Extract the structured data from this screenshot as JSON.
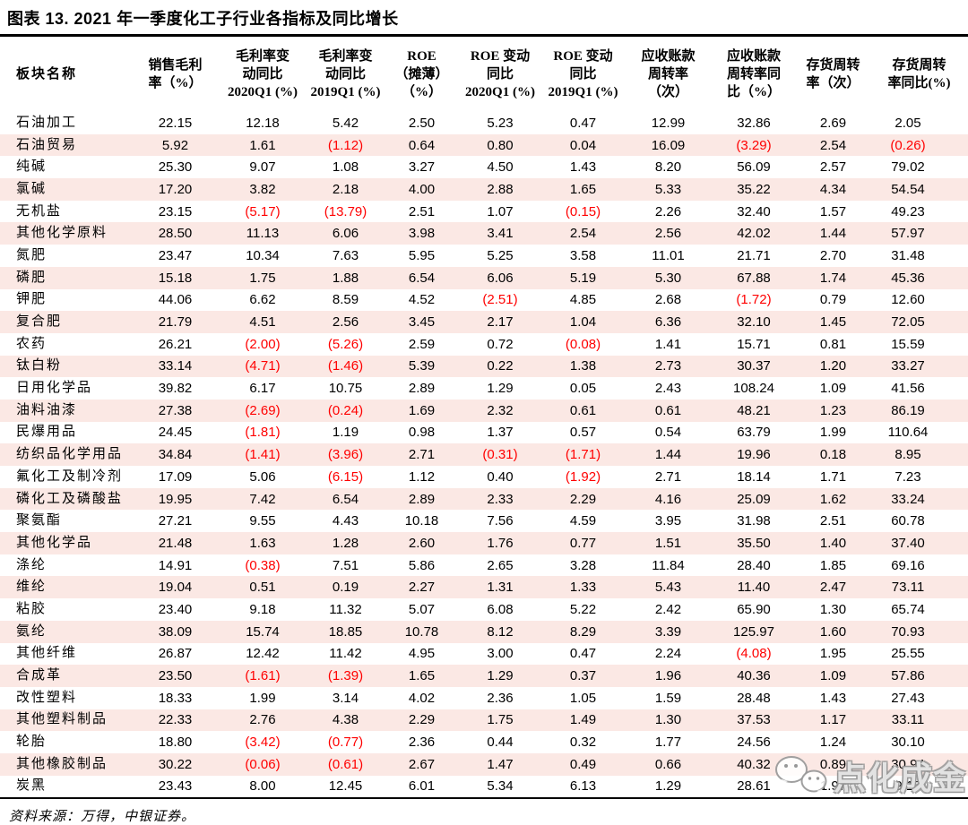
{
  "title": "图表 13. 2021 年一季度化工子行业各指标及同比增长",
  "source_note": "资料来源：万得，中银证券。",
  "watermark": {
    "text": "点化成金",
    "icon": "wechat-chat-bubbles-icon"
  },
  "colors": {
    "stripe_pink": "#fbe8e4",
    "negative_red": "#ff0000",
    "text_black": "#000000",
    "watermark_gray": "#969696"
  },
  "negative_format": "parentheses shown in red",
  "chart_data": {
    "type": "table",
    "headers": [
      "板块名称",
      "销售毛利\n率（%）",
      "毛利率变\n动同比\n2020Q1 (%)",
      "毛利率变\n动同比\n2019Q1 (%)",
      "ROE\n（摊薄）\n（%）",
      "ROE 变动\n同比\n2020Q1 (%)",
      "ROE 变动\n同比\n2019Q1 (%)",
      "应收账款\n周转率\n（次）",
      "应收账款\n周转率同\n比（%）",
      "存货周转\n率（次）",
      "存货周转\n率同比(%)"
    ],
    "rows": [
      {
        "name": "石油加工",
        "values": [
          "22.15",
          "12.18",
          "5.42",
          "2.50",
          "5.23",
          "0.47",
          "12.99",
          "32.86",
          "2.69",
          "2.05"
        ]
      },
      {
        "name": "石油贸易",
        "values": [
          "5.92",
          "1.61",
          "(1.12)",
          "0.64",
          "0.80",
          "0.04",
          "16.09",
          "(3.29)",
          "2.54",
          "(0.26)"
        ]
      },
      {
        "name": "纯碱",
        "values": [
          "25.30",
          "9.07",
          "1.08",
          "3.27",
          "4.50",
          "1.43",
          "8.20",
          "56.09",
          "2.57",
          "79.02"
        ]
      },
      {
        "name": "氯碱",
        "values": [
          "17.20",
          "3.82",
          "2.18",
          "4.00",
          "2.88",
          "1.65",
          "5.33",
          "35.22",
          "4.34",
          "54.54"
        ]
      },
      {
        "name": "无机盐",
        "values": [
          "23.15",
          "(5.17)",
          "(13.79)",
          "2.51",
          "1.07",
          "(0.15)",
          "2.26",
          "32.40",
          "1.57",
          "49.23"
        ]
      },
      {
        "name": "其他化学原料",
        "values": [
          "28.50",
          "11.13",
          "6.06",
          "3.98",
          "3.41",
          "2.54",
          "2.56",
          "42.02",
          "1.44",
          "57.97"
        ]
      },
      {
        "name": "氮肥",
        "values": [
          "23.47",
          "10.34",
          "7.63",
          "5.95",
          "5.25",
          "3.58",
          "11.01",
          "21.71",
          "2.70",
          "31.48"
        ]
      },
      {
        "name": "磷肥",
        "values": [
          "15.18",
          "1.75",
          "1.88",
          "6.54",
          "6.06",
          "5.19",
          "5.30",
          "67.88",
          "1.74",
          "45.36"
        ]
      },
      {
        "name": "钾肥",
        "values": [
          "44.06",
          "6.62",
          "8.59",
          "4.52",
          "(2.51)",
          "4.85",
          "2.68",
          "(1.72)",
          "0.79",
          "12.60"
        ]
      },
      {
        "name": "复合肥",
        "values": [
          "21.79",
          "4.51",
          "2.56",
          "3.45",
          "2.17",
          "1.04",
          "6.36",
          "32.10",
          "1.45",
          "72.05"
        ]
      },
      {
        "name": "农药",
        "values": [
          "26.21",
          "(2.00)",
          "(5.26)",
          "2.59",
          "0.72",
          "(0.08)",
          "1.41",
          "15.71",
          "0.81",
          "15.59"
        ]
      },
      {
        "name": "钛白粉",
        "values": [
          "33.14",
          "(4.71)",
          "(1.46)",
          "5.39",
          "0.22",
          "1.38",
          "2.73",
          "30.37",
          "1.20",
          "33.27"
        ]
      },
      {
        "name": "日用化学品",
        "values": [
          "39.82",
          "6.17",
          "10.75",
          "2.89",
          "1.29",
          "0.05",
          "2.43",
          "108.24",
          "1.09",
          "41.56"
        ]
      },
      {
        "name": "油料油漆",
        "values": [
          "27.38",
          "(2.69)",
          "(0.24)",
          "1.69",
          "2.32",
          "0.61",
          "0.61",
          "48.21",
          "1.23",
          "86.19"
        ]
      },
      {
        "name": "民爆用品",
        "values": [
          "24.45",
          "(1.81)",
          "1.19",
          "0.98",
          "1.37",
          "0.57",
          "0.54",
          "63.79",
          "1.99",
          "110.64"
        ]
      },
      {
        "name": "纺织品化学用品",
        "values": [
          "34.84",
          "(1.41)",
          "(3.96)",
          "2.71",
          "(0.31)",
          "(1.71)",
          "1.44",
          "19.96",
          "0.18",
          "8.95"
        ]
      },
      {
        "name": "氟化工及制冷剂",
        "values": [
          "17.09",
          "5.06",
          "(6.15)",
          "1.12",
          "0.40",
          "(1.92)",
          "2.71",
          "18.14",
          "1.71",
          "7.23"
        ]
      },
      {
        "name": "磷化工及磷酸盐",
        "values": [
          "19.95",
          "7.42",
          "6.54",
          "2.89",
          "2.33",
          "2.29",
          "4.16",
          "25.09",
          "1.62",
          "33.24"
        ]
      },
      {
        "name": "聚氨酯",
        "values": [
          "27.21",
          "9.55",
          "4.43",
          "10.18",
          "7.56",
          "4.59",
          "3.95",
          "31.98",
          "2.51",
          "60.78"
        ]
      },
      {
        "name": "其他化学品",
        "values": [
          "21.48",
          "1.63",
          "1.28",
          "2.60",
          "1.76",
          "0.77",
          "1.51",
          "35.50",
          "1.40",
          "37.40"
        ]
      },
      {
        "name": "涤纶",
        "values": [
          "14.91",
          "(0.38)",
          "7.51",
          "5.86",
          "2.65",
          "3.28",
          "11.84",
          "28.40",
          "1.85",
          "69.16"
        ]
      },
      {
        "name": "维纶",
        "values": [
          "19.04",
          "0.51",
          "0.19",
          "2.27",
          "1.31",
          "1.33",
          "5.43",
          "11.40",
          "2.47",
          "73.11"
        ]
      },
      {
        "name": "粘胶",
        "values": [
          "23.40",
          "9.18",
          "11.32",
          "5.07",
          "6.08",
          "5.22",
          "2.42",
          "65.90",
          "1.30",
          "65.74"
        ]
      },
      {
        "name": "氨纶",
        "values": [
          "38.09",
          "15.74",
          "18.85",
          "10.78",
          "8.12",
          "8.29",
          "3.39",
          "125.97",
          "1.60",
          "70.93"
        ]
      },
      {
        "name": "其他纤维",
        "values": [
          "26.87",
          "12.42",
          "11.42",
          "4.95",
          "3.00",
          "0.47",
          "2.24",
          "(4.08)",
          "1.95",
          "25.55"
        ]
      },
      {
        "name": "合成革",
        "values": [
          "23.50",
          "(1.61)",
          "(1.39)",
          "1.65",
          "1.29",
          "0.37",
          "1.96",
          "40.36",
          "1.09",
          "57.86"
        ]
      },
      {
        "name": "改性塑料",
        "values": [
          "18.33",
          "1.99",
          "3.14",
          "4.02",
          "2.36",
          "1.05",
          "1.59",
          "28.48",
          "1.43",
          "27.43"
        ]
      },
      {
        "name": "其他塑料制品",
        "values": [
          "22.33",
          "2.76",
          "4.38",
          "2.29",
          "1.75",
          "1.49",
          "1.30",
          "37.53",
          "1.17",
          "33.11"
        ]
      },
      {
        "name": "轮胎",
        "values": [
          "18.80",
          "(3.42)",
          "(0.77)",
          "2.36",
          "0.44",
          "0.32",
          "1.77",
          "24.56",
          "1.24",
          "30.10"
        ]
      },
      {
        "name": "其他橡胶制品",
        "values": [
          "30.22",
          "(0.06)",
          "(0.61)",
          "2.67",
          "1.47",
          "0.49",
          "0.66",
          "40.32",
          "0.89",
          "30.94"
        ]
      },
      {
        "name": "炭黑",
        "values": [
          "23.43",
          "8.00",
          "12.45",
          "6.01",
          "5.34",
          "6.13",
          "1.29",
          "28.61",
          "1.97",
          "9.15"
        ]
      }
    ]
  }
}
